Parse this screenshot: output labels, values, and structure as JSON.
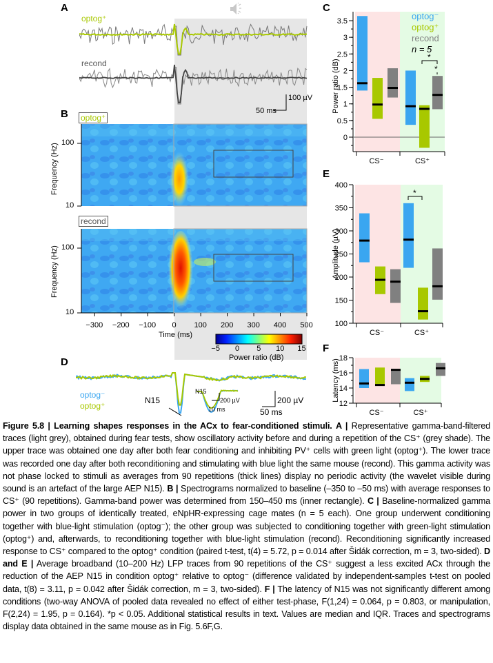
{
  "figure": {
    "number": "Figure 5.8",
    "title": "Learning shapes responses in the ACx to fear-conditioned stimuli."
  },
  "colors": {
    "optog_minus": "#3aa6f0",
    "optog_plus": "#a8c800",
    "recond": "#808080",
    "cs_minus_bg": "#fde4e4",
    "cs_plus_bg": "#e4fbe4",
    "stimulus_shade": "#e6e6e6"
  },
  "panelA": {
    "letter": "A",
    "speaker_icon": "speaker-icon",
    "trace1_label": "optog⁺",
    "trace2_label": "recond",
    "scalebar_v": "100 µV",
    "scalebar_h": "50 ms"
  },
  "panelB": {
    "letter": "B",
    "spec1_label": "optog⁺",
    "spec2_label": "recond",
    "ylabel": "Frequency (Hz)",
    "yticks": [
      "100",
      "10"
    ],
    "xlabel": "Time (ms)",
    "xticks": [
      "−300",
      "−200",
      "−100",
      "0",
      "100",
      "200",
      "300",
      "400",
      "500"
    ],
    "colorbar_label": "Power ratio (dB)",
    "colorbar_ticks": [
      "−5",
      "0",
      "5",
      "10",
      "15"
    ],
    "inner_rectangle": "150–450 ms, ~30–80 Hz"
  },
  "panelD": {
    "letter": "D",
    "legend": [
      "optog⁻",
      "optog⁺"
    ],
    "n15_label": "N15",
    "inset_label": "N15",
    "inset_scale_v": "200 µV",
    "inset_scale_h": "10 ms",
    "scalebar_v": "200 µV",
    "scalebar_h": "50 ms"
  },
  "chart_data": [
    {
      "panel": "C",
      "type": "box",
      "ylabel": "Power ratio (dB)",
      "ylim": [
        -0.4,
        3.7
      ],
      "yticks": [
        "0",
        "0.5",
        "1",
        "1.5",
        "2",
        "2.5",
        "3",
        "3.5"
      ],
      "categories": [
        "CS⁻",
        "CS⁺"
      ],
      "legend": [
        "optog⁻",
        "optog⁺",
        "recond"
      ],
      "annotation": "n = 5",
      "significance": [
        "*",
        "*"
      ],
      "series": [
        {
          "name": "optog⁻",
          "CS⁻": {
            "q1": 1.4,
            "median": 1.62,
            "q3": 3.64
          },
          "CS⁺": {
            "q1": 0.37,
            "median": 0.93,
            "q3": 2.0
          }
        },
        {
          "name": "optog⁺",
          "CS⁻": {
            "q1": 0.55,
            "median": 0.98,
            "q3": 1.78
          },
          "CS⁺": {
            "q1": -0.32,
            "median": 0.85,
            "q3": 0.96
          }
        },
        {
          "name": "recond",
          "CS⁻": {
            "q1": 1.19,
            "median": 1.48,
            "q3": 2.07
          },
          "CS⁺": {
            "q1": 0.84,
            "median": 1.27,
            "q3": 1.84
          }
        }
      ]
    },
    {
      "panel": "E",
      "type": "box",
      "ylabel": "Amplitude (µV)",
      "ylim": [
        100,
        400
      ],
      "yticks": [
        "100",
        "150",
        "200",
        "250",
        "300",
        "350",
        "400"
      ],
      "categories": [
        "CS⁻",
        "CS⁺"
      ],
      "significance": [
        "*"
      ],
      "series": [
        {
          "name": "optog⁻",
          "CS⁻": {
            "q1": 232,
            "median": 279,
            "q3": 338
          },
          "CS⁺": {
            "q1": 220,
            "median": 281,
            "q3": 360
          }
        },
        {
          "name": "optog⁺",
          "CS⁻": {
            "q1": 163,
            "median": 194,
            "q3": 223
          },
          "CS⁺": {
            "q1": 108,
            "median": 126,
            "q3": 177
          }
        },
        {
          "name": "recond",
          "CS⁻": {
            "q1": 144,
            "median": 190,
            "q3": 217
          },
          "CS⁺": {
            "q1": 151,
            "median": 180,
            "q3": 262
          }
        }
      ]
    },
    {
      "panel": "F",
      "type": "box",
      "ylabel": "Latency (ms)",
      "ylim": [
        12,
        18
      ],
      "yticks": [
        "12",
        "14",
        "16",
        "18"
      ],
      "categories": [
        "CS⁻",
        "CS⁺"
      ],
      "series": [
        {
          "name": "optog⁻",
          "CS⁻": {
            "q1": 14.0,
            "median": 14.6,
            "q3": 16.5
          },
          "CS⁺": {
            "q1": 13.6,
            "median": 14.7,
            "q3": 15.3
          }
        },
        {
          "name": "optog⁺",
          "CS⁻": {
            "q1": 14.3,
            "median": 14.4,
            "q3": 16.7
          },
          "CS⁺": {
            "q1": 14.8,
            "median": 15.2,
            "q3": 15.6
          }
        },
        {
          "name": "recond",
          "CS⁻": {
            "q1": 14.5,
            "median": 16.4,
            "q3": 16.4
          },
          "CS⁺": {
            "q1": 15.6,
            "median": 16.6,
            "q3": 17.3
          }
        }
      ]
    }
  ],
  "caption": {
    "figure_label": "Figure 5.8 |",
    "title": "Learning shapes responses in the ACx to fear-conditioned stimuli.",
    "A_label": "A |",
    "A_text": "Representative gamma-band-filtered traces (light grey), obtained during fear tests, show oscillatory activity before and during a repetition of the CS⁺ (grey shade). The upper trace was obtained one day after both fear conditioning and inhibiting PV⁺ cells with green light (optog⁺). The lower trace was recorded one day after both reconditioning and stimulating with blue light the same mouse (recond). This gamma activity was not phase locked to stimuli as averages from 90 repetitions (thick lines) display no periodic activity (the wavelet visible during sound is an artefact of the large AEP N15).",
    "B_label": "B |",
    "B_text": "Spectrograms normalized to baseline (–350 to –50 ms) with average responses to CS⁺ (90 repetitions). Gamma-band power was determined from 150–450 ms (inner rectangle).",
    "C_label": "C |",
    "C_text": "Baseline-normalized gamma power in two groups of identically treated, eNpHR-expressing cage mates (n = 5 each). One group underwent conditioning together with blue-light stimulation (optog⁻); the other group was subjected to conditioning together with green-light stimulation (optog⁺) and, afterwards, to reconditioning together with blue-light stimulation (recond). Reconditioning significantly increased response to CS⁺ compared to the optog⁺ condition (paired t-test, t(4) = 5.72, p = 0.014 after Šidák correction, m = 3, two-sided).",
    "DE_label": "D and E |",
    "DE_text": "Average broadband (10–200 Hz) LFP traces from 90 repetitions of the CS⁺ suggest a less excited ACx through the reduction of the AEP N15 in condition optog⁺ relative to optog⁻ (difference validated by independent-samples t-test on pooled data, t(8) = 3.11, p = 0.042 after Šidák correction, m = 3, two-sided).",
    "F_label": "F |",
    "F_text": "The latency of N15 was not significantly different among conditions (two-way ANOVA of pooled data revealed no effect of either test-phase, F(1,24) = 0.064, p = 0.803, or manipulation, F(2,24) = 1.95, p = 0.164). *p < 0.05. Additional statistical results in text. Values are median and IQR. Traces and spectrograms display data obtained in the same mouse as in Fig. 5.6F,G."
  }
}
